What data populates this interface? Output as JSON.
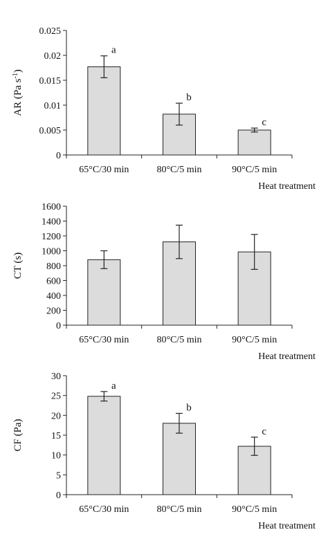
{
  "chart_data": [
    {
      "type": "bar",
      "categories": [
        "65°C/30 min",
        "80°C/5 min",
        "90°C/5 min"
      ],
      "values": [
        0.0177,
        0.0082,
        0.005
      ],
      "errors": [
        0.0022,
        0.0022,
        0.0004
      ],
      "significance": [
        "a",
        "b",
        "c"
      ],
      "ylabel_main": "AR (Pa s",
      "ylabel_sup": "-1",
      "ylabel_end": ")",
      "xlabel": "Heat treatment",
      "ylim": [
        0,
        0.025
      ],
      "yticks": [
        0,
        0.005,
        0.01,
        0.015,
        0.02,
        0.025
      ],
      "ytick_labels": [
        "0",
        "0.005",
        "0.01",
        "0.015",
        "0.02",
        "0.025"
      ],
      "grid": false,
      "legend": "none",
      "bar_color": "#dcdcdc"
    },
    {
      "type": "bar",
      "categories": [
        "65°C/30 min",
        "80°C/5 min",
        "90°C/5 min"
      ],
      "values": [
        880,
        1120,
        985
      ],
      "errors": [
        120,
        225,
        235
      ],
      "significance": [
        "",
        "",
        ""
      ],
      "ylabel_main": "CT (s)",
      "ylabel_sup": "",
      "ylabel_end": "",
      "xlabel": "Heat treatment",
      "ylim": [
        0,
        1600
      ],
      "yticks": [
        0,
        200,
        400,
        600,
        800,
        1000,
        1200,
        1400,
        1600
      ],
      "ytick_labels": [
        "0",
        "200",
        "400",
        "600",
        "800",
        "1000",
        "1200",
        "1400",
        "1600"
      ],
      "grid": false,
      "legend": "none",
      "bar_color": "#dcdcdc"
    },
    {
      "type": "bar",
      "categories": [
        "65°C/30 min",
        "80°C/5 min",
        "90°C/5 min"
      ],
      "values": [
        24.8,
        18.0,
        12.2
      ],
      "errors": [
        1.2,
        2.5,
        2.3
      ],
      "significance": [
        "a",
        "b",
        "c"
      ],
      "ylabel_main": "CF (Pa)",
      "ylabel_sup": "",
      "ylabel_end": "",
      "xlabel": "Heat treatment",
      "ylim": [
        0,
        30
      ],
      "yticks": [
        0,
        5,
        10,
        15,
        20,
        25,
        30
      ],
      "ytick_labels": [
        "0",
        "5",
        "10",
        "15",
        "20",
        "25",
        "30"
      ],
      "grid": false,
      "legend": "none",
      "bar_color": "#dcdcdc"
    }
  ]
}
